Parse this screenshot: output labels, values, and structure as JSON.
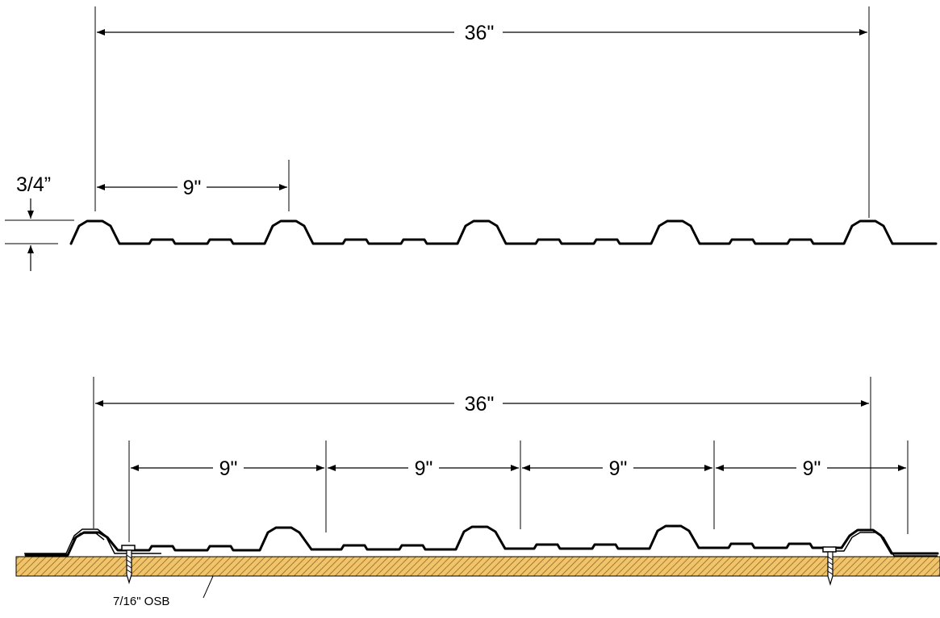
{
  "top_profile": {
    "overall_width_label": "36\"",
    "rib_spacing_label": "9\"",
    "rib_height_label": "3/4”"
  },
  "bottom_assembly": {
    "overall_width_label": "36\"",
    "rib_spacing_labels": [
      "9\"",
      "9\"",
      "9\"",
      "9\""
    ],
    "substrate_label": "7/16\" OSB"
  },
  "colors": {
    "line": "#000000",
    "osb_fill": "#f2c46a",
    "osb_hatch": "#8a6a2a"
  }
}
